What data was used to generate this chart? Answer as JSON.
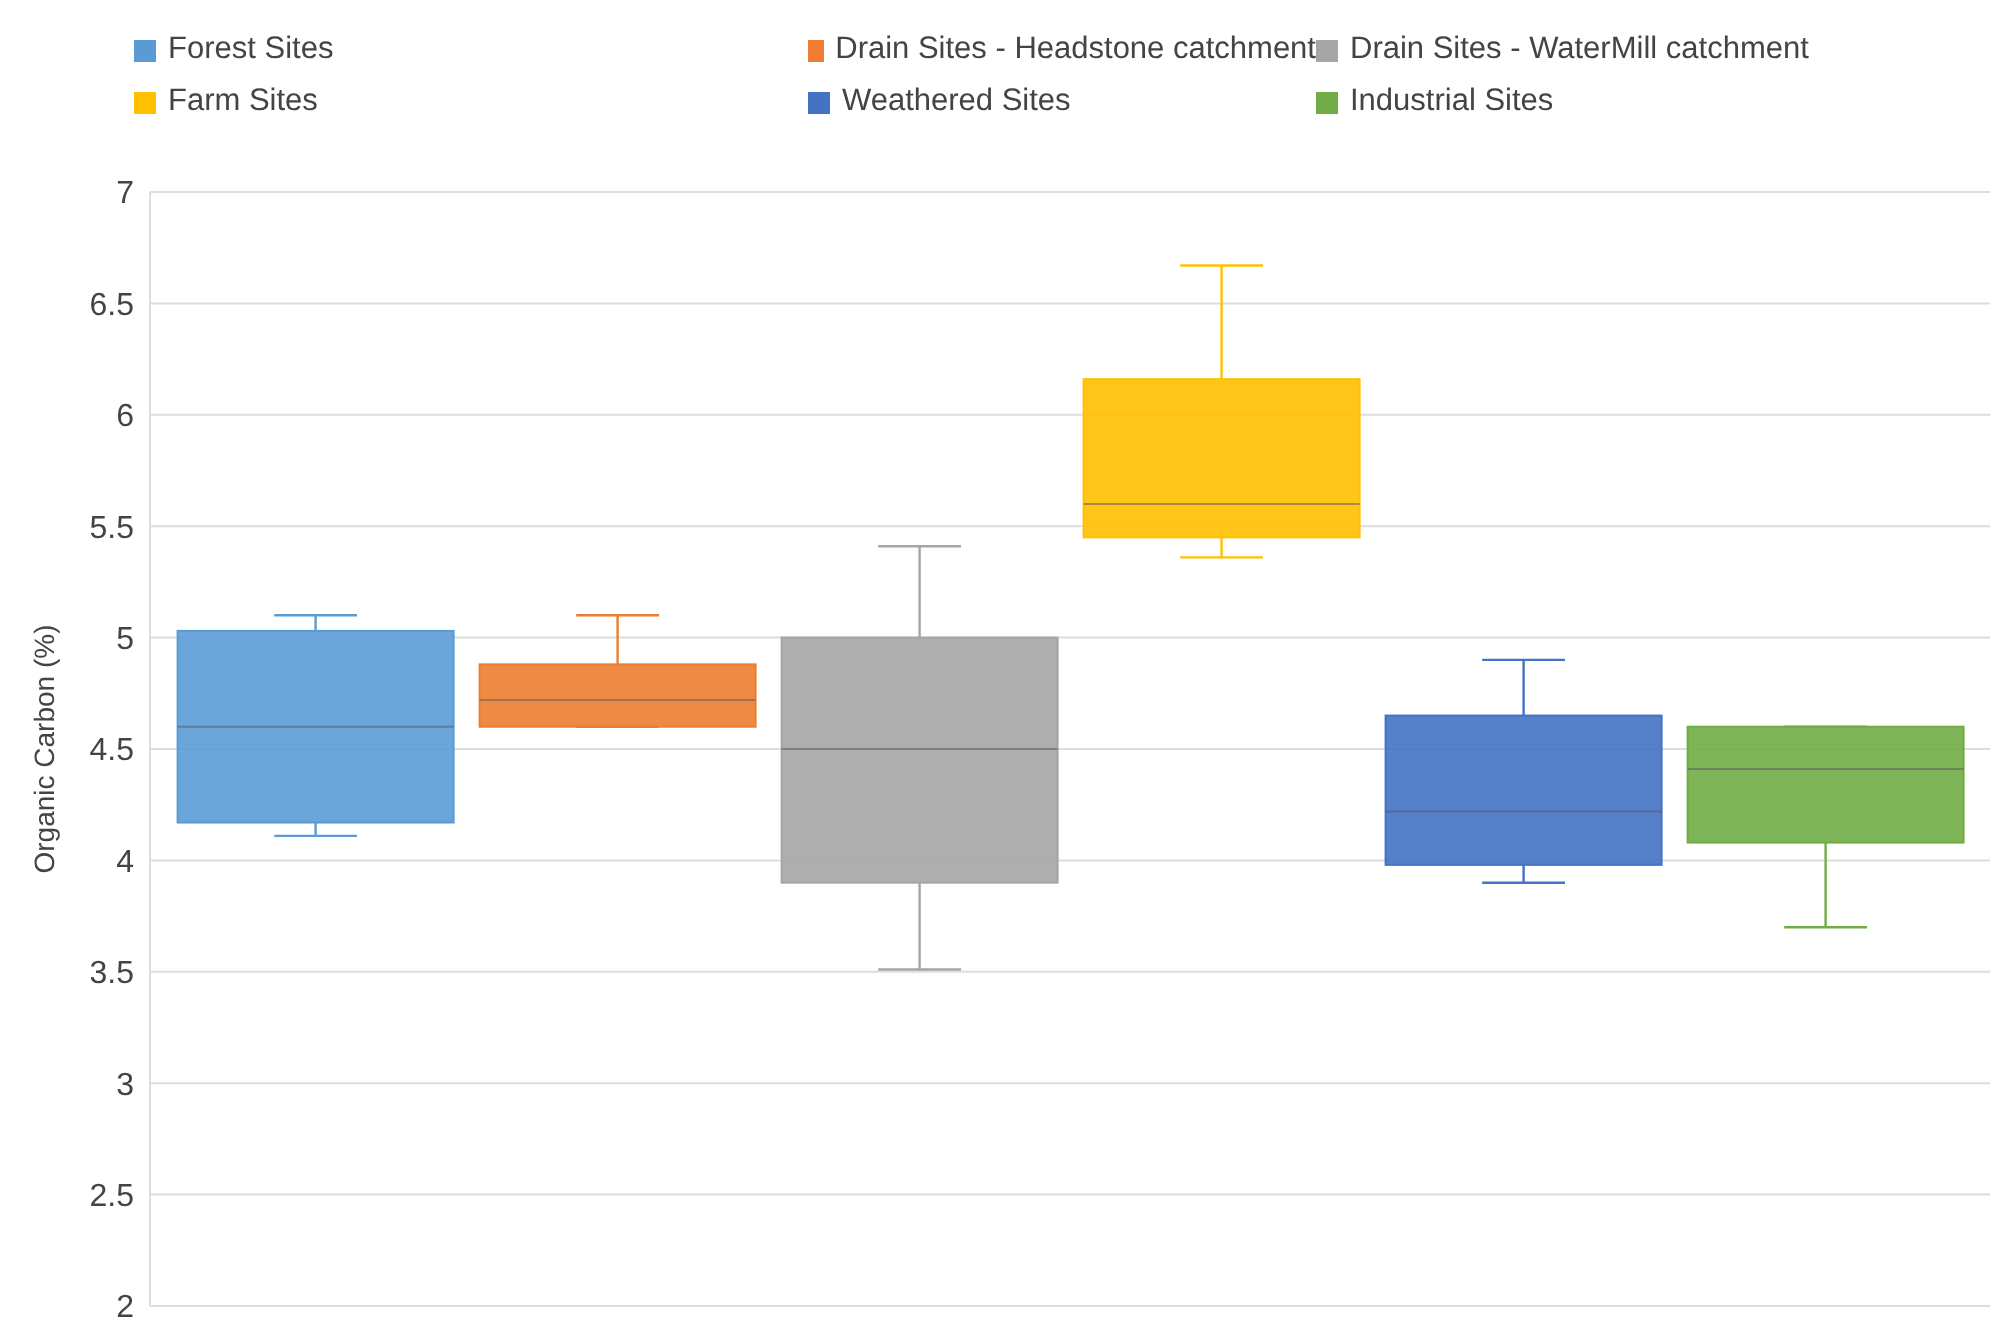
{
  "chart_data": {
    "type": "box",
    "ylabel": "Organic Carbon (%)",
    "categories": [
      null
    ],
    "ylim": [
      2,
      7
    ],
    "yticks": [
      2,
      2.5,
      3,
      3.5,
      4,
      4.5,
      5,
      5.5,
      6,
      6.5,
      7
    ],
    "grid": "y",
    "legend": "top",
    "series": [
      {
        "name": "Forest Sites",
        "color": "#5b9bd5",
        "boxes": [
          {
            "low": 4.11,
            "q1": 4.17,
            "median": 4.6,
            "q3": 5.03,
            "high": 5.1
          }
        ]
      },
      {
        "name": "Drain Sites - Headstone catchment",
        "color": "#ed7d31",
        "boxes": [
          {
            "low": 4.6,
            "q1": 4.6,
            "median": 4.72,
            "q3": 4.88,
            "high": 5.1
          }
        ]
      },
      {
        "name": "Drain Sites - WaterMill catchment",
        "color": "#a5a5a5",
        "boxes": [
          {
            "low": 3.51,
            "q1": 3.9,
            "median": 4.5,
            "q3": 5.0,
            "high": 5.41
          }
        ]
      },
      {
        "name": "Farm Sites",
        "color": "#ffc000",
        "boxes": [
          {
            "low": 5.36,
            "q1": 5.45,
            "median": 5.6,
            "q3": 6.16,
            "high": 6.67
          }
        ]
      },
      {
        "name": "Weathered Sites",
        "color": "#4472c4",
        "boxes": [
          {
            "low": 3.9,
            "q1": 3.98,
            "median": 4.22,
            "q3": 4.65,
            "high": 4.9
          }
        ]
      },
      {
        "name": "Industrial Sites",
        "color": "#70ad47",
        "boxes": [
          {
            "low": 3.7,
            "q1": 4.08,
            "median": 4.41,
            "q3": 4.6,
            "high": 4.6
          }
        ]
      }
    ]
  }
}
